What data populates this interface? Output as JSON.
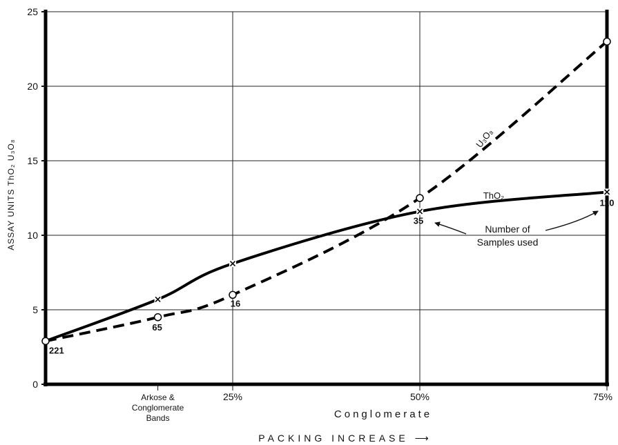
{
  "chart_data": {
    "type": "line",
    "title": "",
    "ylabel": "ASSAY UNITS ThO₂ U₃O₈",
    "xlabel": "PACKING INCREASE ⟶",
    "x_subtitle": "Conglomerate",
    "ylim": [
      0,
      25
    ],
    "yticks": [
      "0",
      "5",
      "10",
      "15",
      "20",
      "25"
    ],
    "grid": true,
    "categories": [
      {
        "label": "Arkose & Conglomerate Bands",
        "lines": [
          "Arkose &",
          "Conglomerate",
          "Bands"
        ]
      },
      {
        "label": "25%"
      },
      {
        "label": "50%"
      },
      {
        "label": "75%"
      }
    ],
    "series": [
      {
        "name": "U₃O₈",
        "style": "dashed",
        "marker": "circle",
        "x": [
          0,
          0.6,
          1,
          2,
          3
        ],
        "values": [
          2.9,
          4.5,
          6.0,
          12.5,
          23.0
        ]
      },
      {
        "name": "ThO₂",
        "style": "solid",
        "marker": "x",
        "x": [
          0,
          0.6,
          1,
          2,
          3
        ],
        "values": [
          2.9,
          5.7,
          8.1,
          11.6,
          12.9
        ]
      }
    ],
    "sample_counts": [
      {
        "x": 0,
        "y": 2.9,
        "label": "221"
      },
      {
        "x": 0.6,
        "y": 4.5,
        "label": "65"
      },
      {
        "x": 1,
        "y": 6.0,
        "label": "16"
      },
      {
        "x": 2,
        "y": 11.6,
        "label": "35"
      },
      {
        "x": 3,
        "y": 12.9,
        "label": "110"
      }
    ],
    "annotation": {
      "lines": [
        "Number of",
        "Samples used"
      ]
    }
  }
}
